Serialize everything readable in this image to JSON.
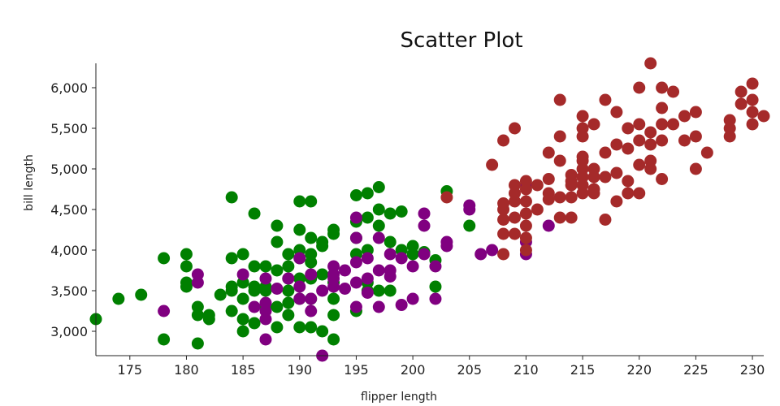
{
  "chart_data": {
    "type": "scatter",
    "title": "Scatter Plot",
    "xlabel": "flipper length",
    "ylabel": "bill length",
    "xlim": [
      172,
      231
    ],
    "ylim": [
      2700,
      6300
    ],
    "x_ticks": [
      175,
      180,
      185,
      190,
      195,
      200,
      205,
      210,
      215,
      220,
      225,
      230
    ],
    "x_tick_labels": [
      "175",
      "180",
      "185",
      "190",
      "195",
      "200",
      "205",
      "210",
      "215",
      "220",
      "225",
      "230"
    ],
    "y_ticks": [
      3000,
      3500,
      4000,
      4500,
      5000,
      5500,
      6000
    ],
    "y_tick_labels": [
      "3,000",
      "3,500",
      "4,000",
      "4,500",
      "5,000",
      "5,500",
      "6,000"
    ],
    "grid": false,
    "legend": "none",
    "series": [
      {
        "color": "#008000",
        "x": [
          172,
          174,
          176,
          178,
          178,
          180,
          180,
          180,
          180,
          181,
          181,
          181,
          182,
          182,
          183,
          184,
          184,
          184,
          184,
          184,
          185,
          185,
          185,
          185,
          185,
          186,
          186,
          186,
          186,
          186,
          187,
          187,
          187,
          187,
          188,
          188,
          188,
          188,
          188,
          189,
          189,
          189,
          189,
          189,
          189,
          190,
          190,
          190,
          190,
          190,
          190,
          190,
          191,
          191,
          191,
          191,
          191,
          191,
          191,
          192,
          192,
          192,
          192,
          193,
          193,
          193,
          193,
          193,
          193,
          195,
          195,
          195,
          195,
          195,
          196,
          196,
          196,
          196,
          196,
          197,
          197,
          197,
          197,
          198,
          198,
          198,
          199,
          199,
          200,
          200,
          201,
          202,
          202,
          203,
          205
        ],
        "y": [
          3150,
          3400,
          3450,
          3900,
          2900,
          3950,
          3800,
          3600,
          3550,
          3300,
          3200,
          2850,
          3150,
          3200,
          3450,
          4650,
          3900,
          3550,
          3500,
          3250,
          3950,
          3600,
          3400,
          3150,
          3000,
          4450,
          3800,
          3550,
          3500,
          3100,
          3800,
          3550,
          3500,
          3300,
          4300,
          4100,
          3750,
          3300,
          3050,
          3950,
          3800,
          3650,
          3500,
          3350,
          3200,
          4600,
          4250,
          4000,
          3900,
          3650,
          3400,
          3050,
          4600,
          4150,
          3950,
          3850,
          3650,
          3400,
          3050,
          4100,
          4050,
          3700,
          3000,
          4250,
          4200,
          3600,
          3400,
          3200,
          2900,
          4675,
          4350,
          4150,
          3950,
          3250,
          4700,
          4400,
          4000,
          3600,
          3500,
          4775,
          4500,
          4300,
          3500,
          4450,
          4100,
          3500,
          4475,
          4000,
          4050,
          3950,
          3975,
          3875,
          3550,
          4725,
          4300
        ]
      },
      {
        "color": "#800080",
        "x": [
          178,
          181,
          181,
          185,
          186,
          187,
          187,
          187,
          187,
          187,
          188,
          189,
          190,
          190,
          190,
          191,
          191,
          191,
          192,
          192,
          193,
          193,
          193,
          193,
          194,
          194,
          195,
          195,
          195,
          195,
          195,
          196,
          196,
          196,
          197,
          197,
          197,
          198,
          198,
          198,
          199,
          199,
          200,
          200,
          201,
          201,
          201,
          202,
          202,
          203,
          203,
          205,
          205,
          206,
          207,
          210,
          210,
          210,
          212
        ],
        "y": [
          3250,
          3700,
          3600,
          3700,
          3300,
          3650,
          3350,
          3250,
          3150,
          2900,
          3525,
          3650,
          3900,
          3550,
          3400,
          3700,
          3400,
          3250,
          3500,
          2700,
          3800,
          3700,
          3650,
          3550,
          3750,
          3525,
          4400,
          4150,
          3850,
          3600,
          3300,
          3900,
          3650,
          3475,
          4150,
          3750,
          3300,
          3950,
          3750,
          3675,
          3900,
          3325,
          3800,
          3400,
          4450,
          4300,
          3950,
          3800,
          3400,
          4100,
          4050,
          4550,
          4500,
          3950,
          4000,
          4800,
          4100,
          3950,
          4300
        ]
      },
      {
        "color": "#a52a2a",
        "x": [
          203,
          207,
          208,
          208,
          208,
          208,
          208,
          208,
          209,
          209,
          209,
          209,
          209,
          209,
          210,
          210,
          210,
          210,
          210,
          210,
          210,
          211,
          211,
          212,
          212,
          212,
          212,
          213,
          213,
          213,
          213,
          213,
          214,
          214,
          214,
          214,
          214,
          215,
          215,
          215,
          215,
          215,
          215,
          215,
          215,
          215,
          216,
          216,
          216,
          216,
          216,
          217,
          217,
          217,
          217,
          218,
          218,
          218,
          218,
          219,
          219,
          219,
          219,
          220,
          220,
          220,
          220,
          220,
          221,
          221,
          221,
          221,
          221,
          222,
          222,
          222,
          222,
          222,
          223,
          223,
          224,
          224,
          225,
          225,
          225,
          226,
          228,
          228,
          228,
          229,
          229,
          230,
          230,
          230,
          230,
          231
        ],
        "y": [
          4650,
          5050,
          5350,
          4575,
          4500,
          4375,
          4200,
          3950,
          5500,
          4800,
          4700,
          4600,
          4400,
          4200,
          4850,
          4750,
          4600,
          4450,
          4300,
          4150,
          4000,
          4800,
          4500,
          5200,
          4875,
          4700,
          4625,
          5850,
          5400,
          5100,
          4650,
          4400,
          4925,
          4850,
          4800,
          4650,
          4400,
          5650,
          5500,
          5400,
          5150,
          5100,
          5000,
          4900,
          4800,
          4700,
          5550,
          5000,
          4900,
          4750,
          4700,
          5850,
          5200,
          4900,
          4375,
          5700,
          5300,
          4950,
          4600,
          5500,
          5250,
          4850,
          4700,
          6000,
          5550,
          5350,
          5050,
          4700,
          6300,
          5450,
          5300,
          5100,
          5000,
          6000,
          5750,
          5550,
          5350,
          4875,
          5950,
          5550,
          5650,
          5350,
          5700,
          5400,
          5000,
          5200,
          5600,
          5500,
          5400,
          5950,
          5800,
          6050,
          5850,
          5700,
          5550,
          5650
        ]
      }
    ]
  }
}
